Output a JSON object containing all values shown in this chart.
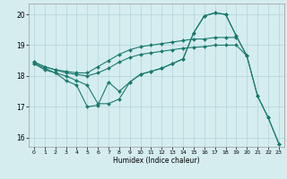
{
  "xlabel": "Humidex (Indice chaleur)",
  "background_color": "#d5edef",
  "grid_color": "#b8d8db",
  "line_color": "#1a7a6e",
  "xlim": [
    -0.5,
    23.5
  ],
  "ylim": [
    15.7,
    20.35
  ],
  "yticks": [
    16,
    17,
    18,
    19,
    20
  ],
  "xticks": [
    0,
    1,
    2,
    3,
    4,
    5,
    6,
    7,
    8,
    9,
    10,
    11,
    12,
    13,
    14,
    15,
    16,
    17,
    18,
    19,
    20,
    21,
    22,
    23
  ],
  "lines": [
    {
      "x": [
        0,
        1,
        2,
        3,
        4,
        5,
        6,
        7,
        8,
        9,
        10,
        11,
        12,
        13,
        14,
        15,
        16,
        17,
        18,
        19
      ],
      "y": [
        18.45,
        18.3,
        18.2,
        18.15,
        18.1,
        18.1,
        18.3,
        18.5,
        18.7,
        18.85,
        18.95,
        19.0,
        19.05,
        19.1,
        19.15,
        19.2,
        19.2,
        19.25,
        19.25,
        19.25
      ]
    },
    {
      "x": [
        0,
        1,
        2,
        3,
        4,
        5,
        6,
        7,
        8,
        9,
        10,
        11,
        12,
        13,
        14,
        15,
        16,
        17,
        18,
        19,
        20
      ],
      "y": [
        18.45,
        18.3,
        18.2,
        18.1,
        18.05,
        18.0,
        18.1,
        18.25,
        18.45,
        18.6,
        18.7,
        18.75,
        18.8,
        18.85,
        18.9,
        18.93,
        18.95,
        19.0,
        19.0,
        19.0,
        18.65
      ]
    },
    {
      "x": [
        0,
        1,
        2,
        3,
        4,
        5,
        6,
        7,
        8,
        9,
        10,
        11,
        12,
        13,
        14,
        15,
        16,
        17,
        18,
        19,
        20,
        21,
        22,
        23
      ],
      "y": [
        18.4,
        18.25,
        18.1,
        18.0,
        17.85,
        17.7,
        17.1,
        17.1,
        17.25,
        17.8,
        18.05,
        18.15,
        18.25,
        18.4,
        18.55,
        19.4,
        19.95,
        20.05,
        20.0,
        19.3,
        18.65,
        17.35,
        16.65,
        15.8
      ]
    },
    {
      "x": [
        0,
        1,
        2,
        3,
        4,
        5,
        6,
        7,
        8,
        9,
        10,
        11,
        12,
        13,
        14,
        15,
        16,
        17,
        18,
        19,
        20,
        21,
        22,
        23
      ],
      "y": [
        18.4,
        18.2,
        18.1,
        17.85,
        17.7,
        17.0,
        17.05,
        17.8,
        17.5,
        17.8,
        18.05,
        18.15,
        18.25,
        18.4,
        18.55,
        19.4,
        19.95,
        20.05,
        20.0,
        19.3,
        18.65,
        17.35,
        16.65,
        15.8
      ]
    }
  ]
}
